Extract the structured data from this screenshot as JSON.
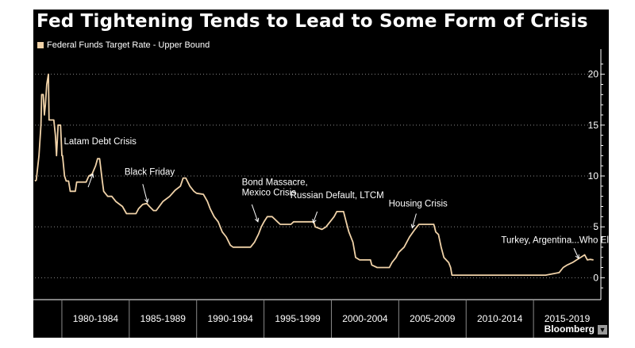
{
  "title": "Fed Tightening Tends to Lead to Some Form of Crisis",
  "brand": "Bloomberg",
  "colors": {
    "line": "#f0d2a8",
    "background": "#000000",
    "text": "#ffffff",
    "grid": "#8a8a8a"
  },
  "chart_data": {
    "type": "line",
    "title": "Fed Tightening Tends to Lead to Some Form of Crisis",
    "legend": {
      "position": "top-left",
      "entries": [
        "Federal Funds Target Rate - Upper Bound"
      ]
    },
    "xlim": [
      1978.0,
      2020.0
    ],
    "ylim": [
      -2,
      22
    ],
    "y_axis_side": "right",
    "grid": {
      "horizontal": true,
      "style": "dotted"
    },
    "yticks": [
      0,
      5,
      10,
      15,
      20
    ],
    "xtick_labels": [
      {
        "label": "1980-1984",
        "range": [
          1980,
          1985
        ]
      },
      {
        "label": "1985-1989",
        "range": [
          1985,
          1990
        ]
      },
      {
        "label": "1990-1994",
        "range": [
          1990,
          1995
        ]
      },
      {
        "label": "1995-1999",
        "range": [
          1995,
          2000
        ]
      },
      {
        "label": "2000-2004",
        "range": [
          2000,
          2005
        ]
      },
      {
        "label": "2005-2009",
        "range": [
          2005,
          2010
        ]
      },
      {
        "label": "2010-2014",
        "range": [
          2010,
          2015
        ]
      },
      {
        "label": "2015-2019",
        "range": [
          2015,
          2020
        ]
      }
    ],
    "series": [
      {
        "name": "Federal Funds Target Rate - Upper Bound",
        "points": [
          [
            1978.0,
            9.5
          ],
          [
            1978.1,
            9.6
          ],
          [
            1978.3,
            12.0
          ],
          [
            1978.45,
            15.0
          ],
          [
            1978.5,
            18.0
          ],
          [
            1978.62,
            18.0
          ],
          [
            1978.7,
            16.0
          ],
          [
            1978.78,
            17.0
          ],
          [
            1978.88,
            19.0
          ],
          [
            1979.0,
            20.0
          ],
          [
            1979.05,
            15.5
          ],
          [
            1979.4,
            15.5
          ],
          [
            1979.52,
            14.0
          ],
          [
            1979.6,
            12.0
          ],
          [
            1979.72,
            15.0
          ],
          [
            1979.9,
            15.0
          ],
          [
            1980.0,
            12.0
          ],
          [
            1980.05,
            12.0
          ],
          [
            1980.2,
            10.0
          ],
          [
            1980.32,
            9.5
          ],
          [
            1980.5,
            9.5
          ],
          [
            1980.62,
            8.5
          ],
          [
            1981.0,
            8.5
          ],
          [
            1981.1,
            9.4
          ],
          [
            1981.8,
            9.4
          ],
          [
            1982.0,
            10.0
          ],
          [
            1982.25,
            10.2
          ],
          [
            1982.5,
            11.0
          ],
          [
            1982.65,
            11.7
          ],
          [
            1982.8,
            11.7
          ],
          [
            1983.0,
            9.5
          ],
          [
            1983.1,
            8.5
          ],
          [
            1983.4,
            8.0
          ],
          [
            1983.7,
            8.0
          ],
          [
            1984.0,
            7.5
          ],
          [
            1984.5,
            7.0
          ],
          [
            1984.8,
            6.3
          ],
          [
            1985.5,
            6.3
          ],
          [
            1985.7,
            6.8
          ],
          [
            1986.0,
            7.2
          ],
          [
            1986.3,
            7.3
          ],
          [
            1986.5,
            7.0
          ],
          [
            1986.8,
            6.6
          ],
          [
            1987.0,
            6.6
          ],
          [
            1987.5,
            7.5
          ],
          [
            1988.0,
            8.0
          ],
          [
            1988.4,
            8.6
          ],
          [
            1988.8,
            9.0
          ],
          [
            1989.0,
            9.8
          ],
          [
            1989.2,
            9.8
          ],
          [
            1989.5,
            9.0
          ],
          [
            1989.8,
            8.5
          ],
          [
            1990.0,
            8.3
          ],
          [
            1990.5,
            8.2
          ],
          [
            1990.8,
            7.5
          ],
          [
            1991.0,
            6.8
          ],
          [
            1991.3,
            6.0
          ],
          [
            1991.6,
            5.5
          ],
          [
            1991.9,
            4.5
          ],
          [
            1992.2,
            4.0
          ],
          [
            1992.5,
            3.2
          ],
          [
            1992.7,
            3.0
          ],
          [
            1993.0,
            3.0
          ],
          [
            1993.8,
            3.0
          ],
          [
            1994.0,
            3.0
          ],
          [
            1994.3,
            3.5
          ],
          [
            1994.6,
            4.3
          ],
          [
            1994.8,
            5.0
          ],
          [
            1995.0,
            5.5
          ],
          [
            1995.25,
            6.0
          ],
          [
            1995.6,
            6.0
          ],
          [
            1995.8,
            5.75
          ],
          [
            1996.0,
            5.5
          ],
          [
            1996.2,
            5.25
          ],
          [
            1997.0,
            5.25
          ],
          [
            1997.2,
            5.5
          ],
          [
            1998.0,
            5.5
          ],
          [
            1998.7,
            5.5
          ],
          [
            1998.8,
            5.0
          ],
          [
            1999.3,
            4.75
          ],
          [
            1999.6,
            5.0
          ],
          [
            1999.9,
            5.5
          ],
          [
            2000.2,
            6.0
          ],
          [
            2000.4,
            6.5
          ],
          [
            2000.9,
            6.5
          ],
          [
            2001.1,
            5.5
          ],
          [
            2001.3,
            4.5
          ],
          [
            2001.6,
            3.5
          ],
          [
            2001.8,
            2.0
          ],
          [
            2002.1,
            1.75
          ],
          [
            2002.9,
            1.75
          ],
          [
            2003.0,
            1.25
          ],
          [
            2003.4,
            1.0
          ],
          [
            2004.3,
            1.0
          ],
          [
            2004.5,
            1.5
          ],
          [
            2004.8,
            2.0
          ],
          [
            2005.0,
            2.5
          ],
          [
            2005.4,
            3.0
          ],
          [
            2005.8,
            4.0
          ],
          [
            2006.2,
            4.75
          ],
          [
            2006.5,
            5.25
          ],
          [
            2007.6,
            5.25
          ],
          [
            2007.75,
            4.5
          ],
          [
            2007.95,
            4.25
          ],
          [
            2008.15,
            3.0
          ],
          [
            2008.35,
            2.0
          ],
          [
            2008.7,
            1.5
          ],
          [
            2008.85,
            1.0
          ],
          [
            2008.95,
            0.25
          ],
          [
            2015.9,
            0.25
          ],
          [
            2016.9,
            0.5
          ],
          [
            2017.2,
            1.0
          ],
          [
            2017.5,
            1.25
          ],
          [
            2017.9,
            1.5
          ],
          [
            2018.2,
            1.75
          ],
          [
            2018.5,
            2.0
          ],
          [
            2018.8,
            2.25
          ],
          [
            2019.0,
            1.75
          ],
          [
            2019.2,
            1.8
          ],
          [
            2019.45,
            1.75
          ]
        ]
      }
    ],
    "annotations": [
      {
        "lines": [
          "Latam Debt Crisis"
        ],
        "arrow_from": [
          1981.95,
          8.9
        ],
        "arrow_to": [
          1982.3,
          10.2
        ],
        "text_at": [
          1980.15,
          13.1
        ]
      },
      {
        "lines": [
          "Black Friday"
        ],
        "arrow_from": [
          1986.0,
          9.2
        ],
        "arrow_to": [
          1986.35,
          7.4
        ],
        "text_at": [
          1984.65,
          10.1
        ]
      },
      {
        "lines": [
          "Bond Massacre,",
          "Mexico Crisis"
        ],
        "arrow_from": [
          1994.1,
          7.2
        ],
        "arrow_to": [
          1994.55,
          5.5
        ],
        "text_at": [
          1993.35,
          9.1
        ]
      },
      {
        "lines": [
          "Russian Default, LTCM"
        ],
        "arrow_from": [
          1998.95,
          6.5
        ],
        "arrow_to": [
          1998.65,
          5.4
        ],
        "text_at": [
          1996.95,
          7.8
        ]
      },
      {
        "lines": [
          "Housing Crisis"
        ],
        "arrow_from": [
          2006.3,
          6.3
        ],
        "arrow_to": [
          2006.0,
          4.9
        ],
        "text_at": [
          2004.25,
          7.0
        ]
      },
      {
        "lines": [
          "Turkey, Argentina...Who Else"
        ],
        "arrow_from": [
          2018.0,
          2.9
        ],
        "arrow_to": [
          2018.35,
          1.9
        ],
        "text_at": [
          2012.6,
          3.4
        ]
      }
    ]
  }
}
